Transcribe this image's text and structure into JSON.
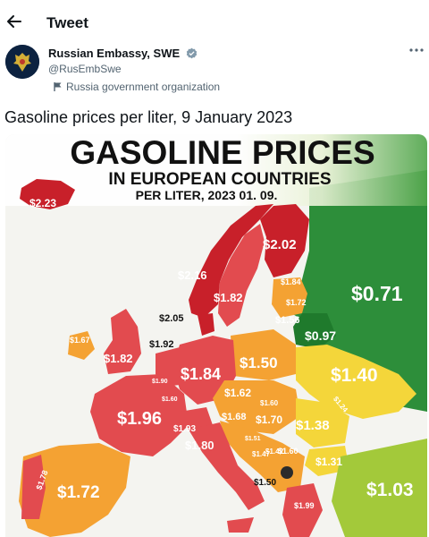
{
  "header": {
    "back_icon": "arrow-left-icon",
    "title": "Tweet"
  },
  "author": {
    "name": "Russian Embassy, SWE",
    "handle": "@RusEmbSwe",
    "affiliation": "Russia government organization",
    "verified": true,
    "more_icon": "more-dots-icon"
  },
  "tweet": {
    "text": "Gasoline prices per liter, 9 January 2023"
  },
  "infographic": {
    "title": "GASOLINE PRICES",
    "subtitle": "IN EUROPEAN COUNTRIES",
    "subtitle2": "PER LITER, 2023 01. 09.",
    "prices": [
      {
        "country": "Iceland",
        "value": "$2.23"
      },
      {
        "country": "Finland",
        "value": "$2.02"
      },
      {
        "country": "Norway",
        "value": "$2.16"
      },
      {
        "country": "Sweden",
        "value": "$1.82"
      },
      {
        "country": "Estonia",
        "value": "$1.84"
      },
      {
        "country": "Latvia",
        "value": "$1.72"
      },
      {
        "country": "Lithuania",
        "value": "$1.56"
      },
      {
        "country": "Russia",
        "value": "$0.71"
      },
      {
        "country": "Belarus",
        "value": "$0.97"
      },
      {
        "country": "Denmark",
        "value": "$2.05"
      },
      {
        "country": "Ireland",
        "value": "$1.67"
      },
      {
        "country": "Netherlands",
        "value": "$1.92"
      },
      {
        "country": "United Kingdom",
        "value": "$1.82"
      },
      {
        "country": "Poland",
        "value": "$1.50"
      },
      {
        "country": "Germany",
        "value": "$1.84"
      },
      {
        "country": "Ukraine",
        "value": "$1.40"
      },
      {
        "country": "Belgium",
        "value": "$1.90"
      },
      {
        "country": "Luxembourg",
        "value": "$1.60"
      },
      {
        "country": "Czechia",
        "value": "$1.62"
      },
      {
        "country": "Slovakia",
        "value": "$1.60"
      },
      {
        "country": "Moldova",
        "value": "$1.24"
      },
      {
        "country": "France",
        "value": "$1.96"
      },
      {
        "country": "Austria",
        "value": "$1.68"
      },
      {
        "country": "Hungary",
        "value": "$1.70"
      },
      {
        "country": "Romania",
        "value": "$1.38"
      },
      {
        "country": "Switzerland",
        "value": "$1.93"
      },
      {
        "country": "Slovenia",
        "value": "$1.51"
      },
      {
        "country": "Croatia",
        "value": "$1.47"
      },
      {
        "country": "Bosnia",
        "value": "$1.42"
      },
      {
        "country": "Serbia",
        "value": "$1.60"
      },
      {
        "country": "Italy",
        "value": "$1.80"
      },
      {
        "country": "Bulgaria",
        "value": "$1.31"
      },
      {
        "country": "Montenegro",
        "value": "$1.50"
      },
      {
        "country": "Portugal",
        "value": "$1.78"
      },
      {
        "country": "Spain",
        "value": "$1.72"
      },
      {
        "country": "Turkey",
        "value": "$1.03"
      },
      {
        "country": "Greece",
        "value": "$1.99"
      }
    ],
    "colors": {
      "red_dark": "#c8202a",
      "red": "#e24b4f",
      "salmon": "#ea6a5c",
      "orange": "#f4a233",
      "yellow": "#f4d63a",
      "green_light": "#a3c93a",
      "green": "#2d8e3a",
      "green_dark": "#1f7a2c"
    }
  }
}
